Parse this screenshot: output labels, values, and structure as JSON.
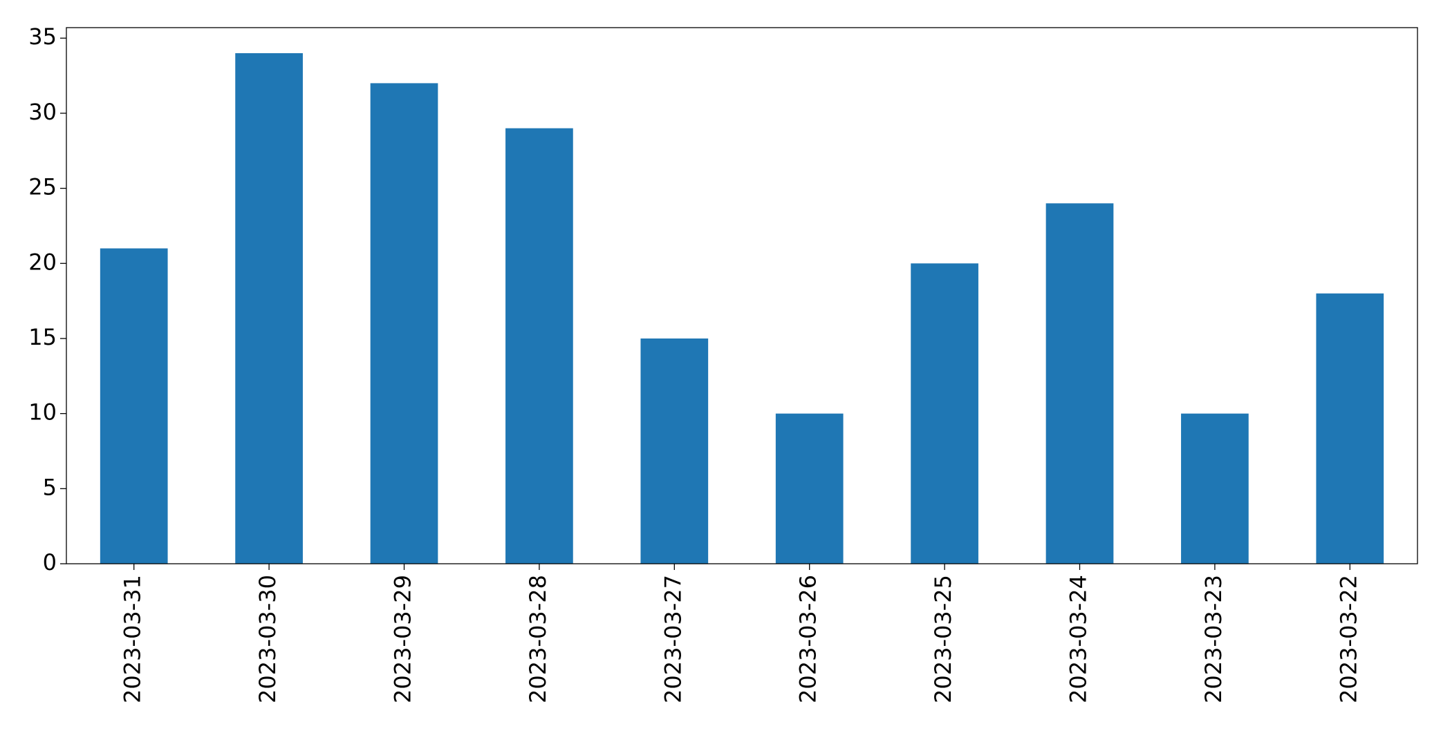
{
  "chart_data": {
    "type": "bar",
    "categories": [
      "2023-03-31",
      "2023-03-30",
      "2023-03-29",
      "2023-03-28",
      "2023-03-27",
      "2023-03-26",
      "2023-03-25",
      "2023-03-24",
      "2023-03-23",
      "2023-03-22"
    ],
    "values": [
      21,
      34,
      32,
      29,
      15,
      10,
      20,
      24,
      10,
      18
    ],
    "color": "#1f77b4",
    "ylim": [
      0,
      35.7
    ],
    "yticks": [
      0,
      5,
      10,
      15,
      20,
      25,
      30,
      35
    ],
    "grid": false
  }
}
